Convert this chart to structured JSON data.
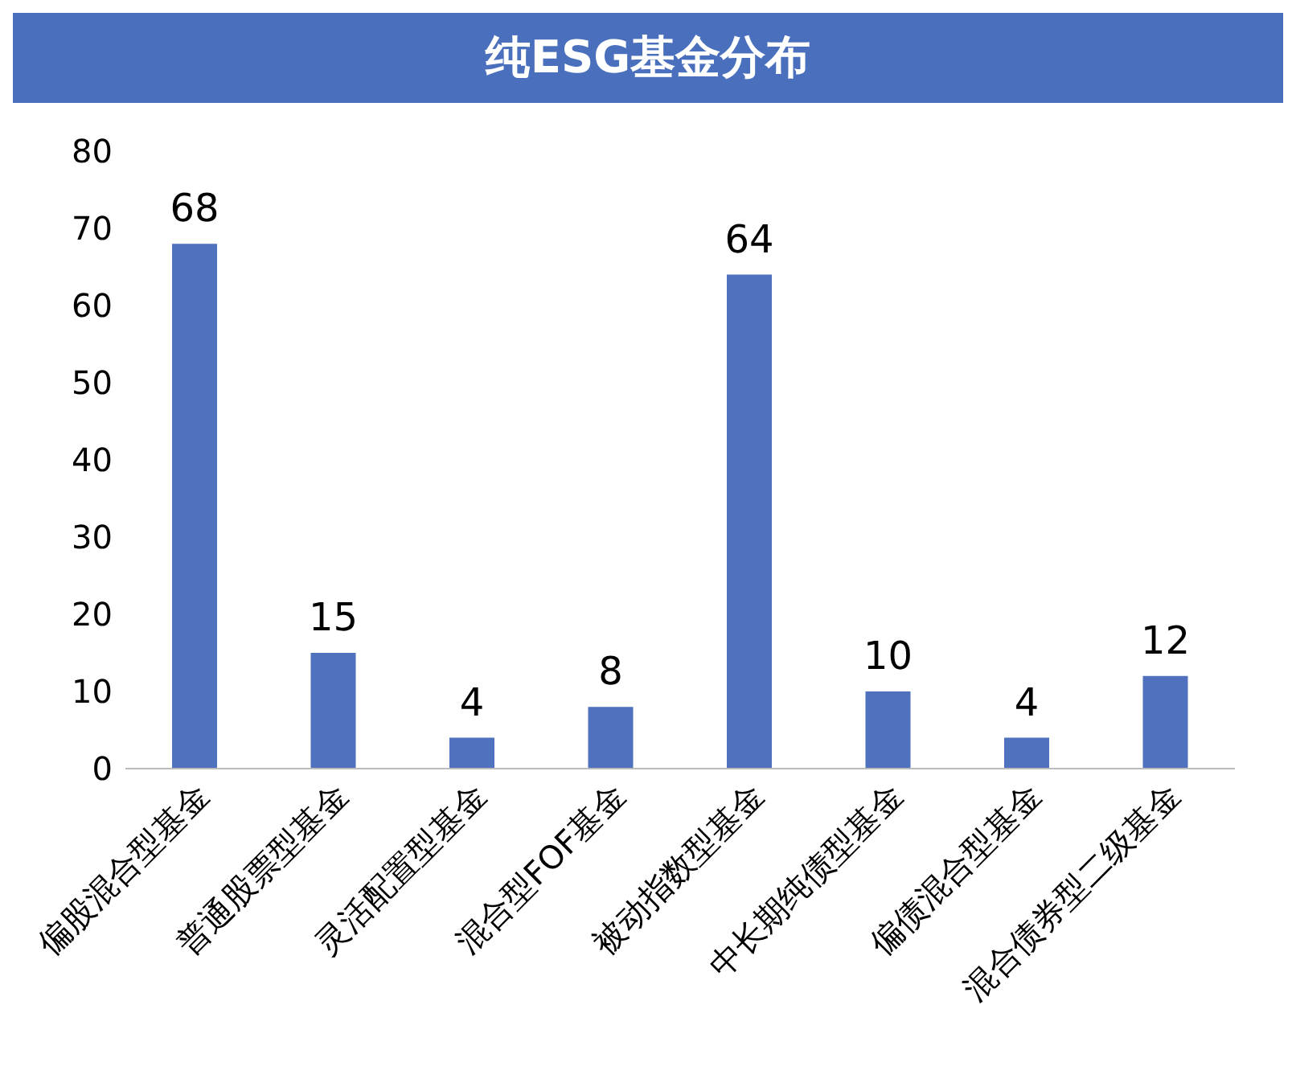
{
  "chart_data": {
    "type": "bar",
    "title": "纯ESG基金分布",
    "categories": [
      "偏股混合型基金",
      "普通股票型基金",
      "灵活配置型基金",
      "混合型FOF基金",
      "被动指数型基金",
      "中长期纯债型基金",
      "偏债混合型基金",
      "混合债券型二级基金"
    ],
    "values": [
      68,
      15,
      4,
      8,
      64,
      10,
      4,
      12
    ],
    "color": "#4f71be",
    "ylim": [
      0,
      80
    ],
    "yticks": [
      0,
      10,
      20,
      30,
      40,
      50,
      60,
      70,
      80
    ],
    "grid": false,
    "legend": false,
    "data_labels": true
  }
}
